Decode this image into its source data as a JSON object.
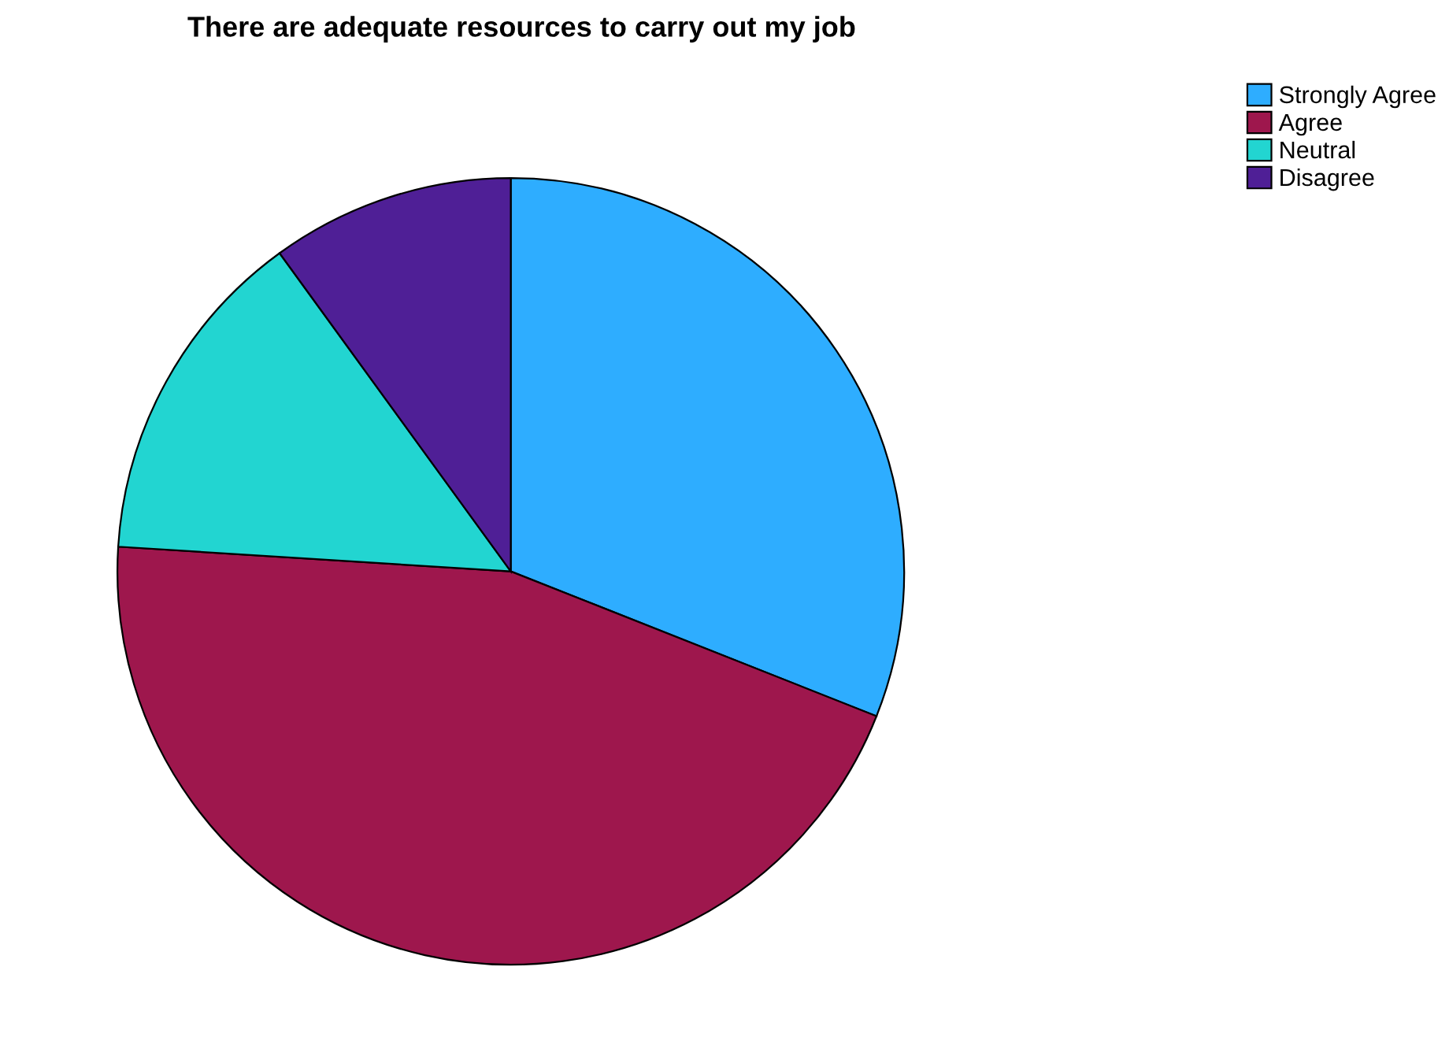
{
  "chart_data": {
    "type": "pie",
    "title": "There are adequate resources to carry out my job",
    "categories": [
      "Strongly Agree",
      "Agree",
      "Neutral",
      "Disagree"
    ],
    "values": [
      31,
      45,
      14,
      10
    ],
    "colors": [
      "#2eadff",
      "#9e174d",
      "#22d5d1",
      "#4f1f96"
    ],
    "legend": "top right"
  }
}
